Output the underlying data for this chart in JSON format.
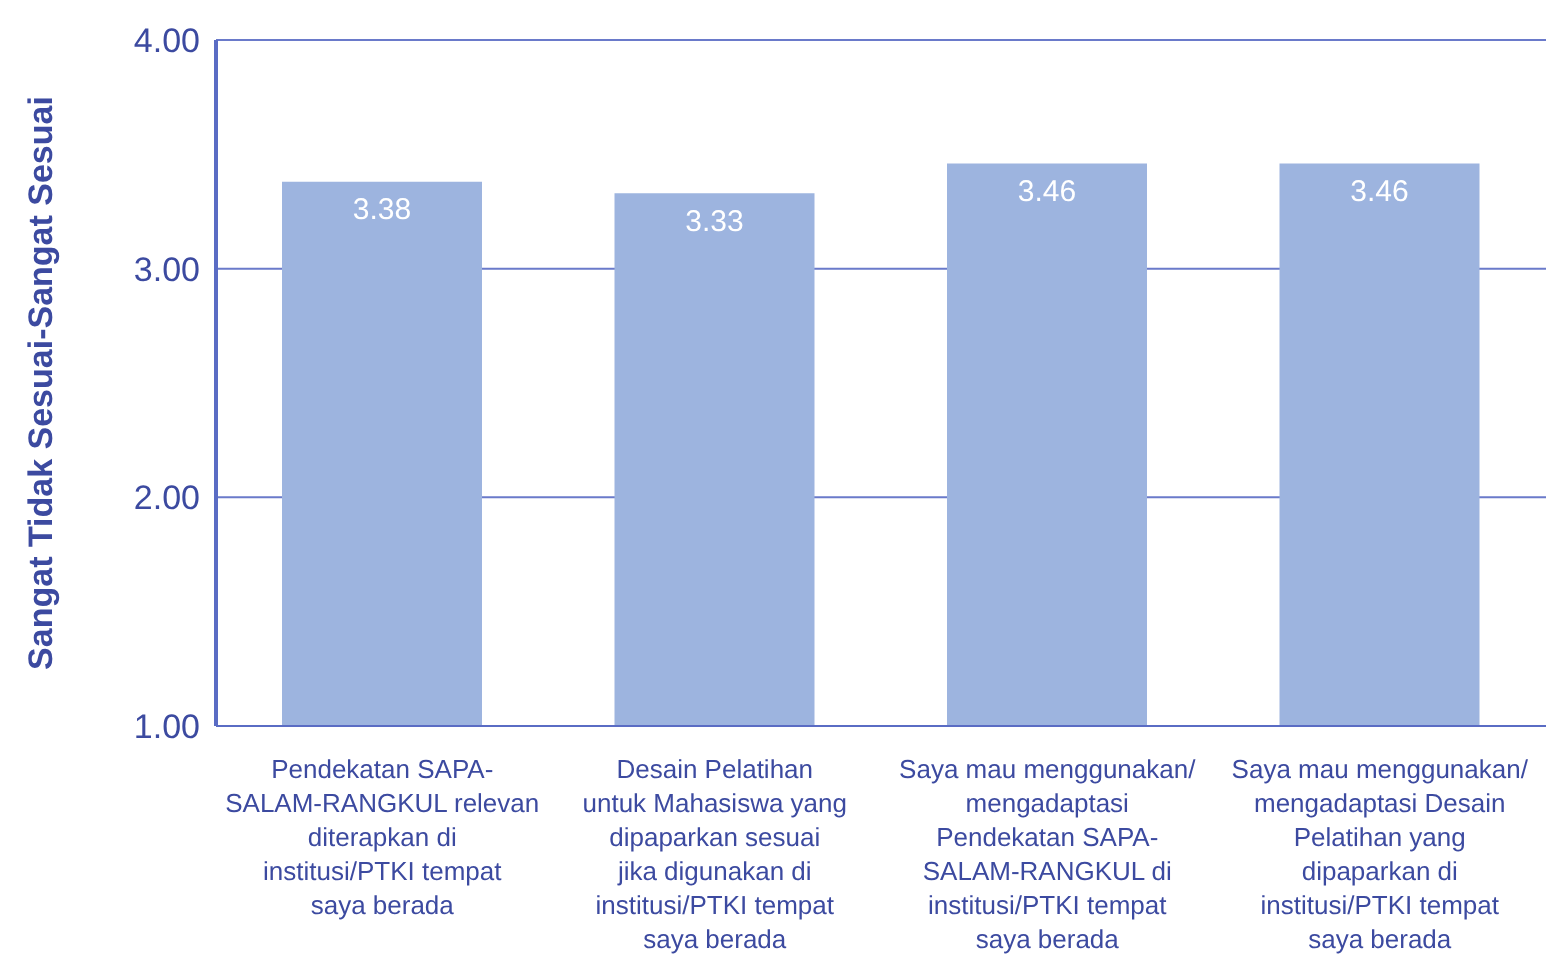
{
  "chart_data": {
    "type": "bar",
    "ylabel": "Sangat Tidak Sesuai-Sangat Sesuai",
    "categories": [
      "Pendekatan SAPA-SALAM-RANGKUL relevan diterapkan di institusi/PTKI tempat saya berada",
      "Desain Pelatihan untuk Mahasiswa yang dipaparkan sesuai jika digunakan di institusi/PTKI tempat saya berada",
      "Saya mau menggunakan/ mengadaptasi Pendekatan SAPA-SALAM-RANGKUL di institusi/PTKI tempat saya berada",
      "Saya mau menggunakan/ mengadaptasi Desain Pelatihan yang dipaparkan di institusi/PTKI tempat saya berada"
    ],
    "values": [
      3.38,
      3.33,
      3.46,
      3.46
    ],
    "color": "#9db4df",
    "ylim": [
      1,
      4
    ],
    "yticks": [
      {
        "value": 1,
        "label": "1.00"
      },
      {
        "value": 2,
        "label": "2.00"
      },
      {
        "value": 3,
        "label": "3.00"
      },
      {
        "value": 4,
        "label": "4.00"
      }
    ],
    "grid": "y",
    "data_labels": true
  }
}
